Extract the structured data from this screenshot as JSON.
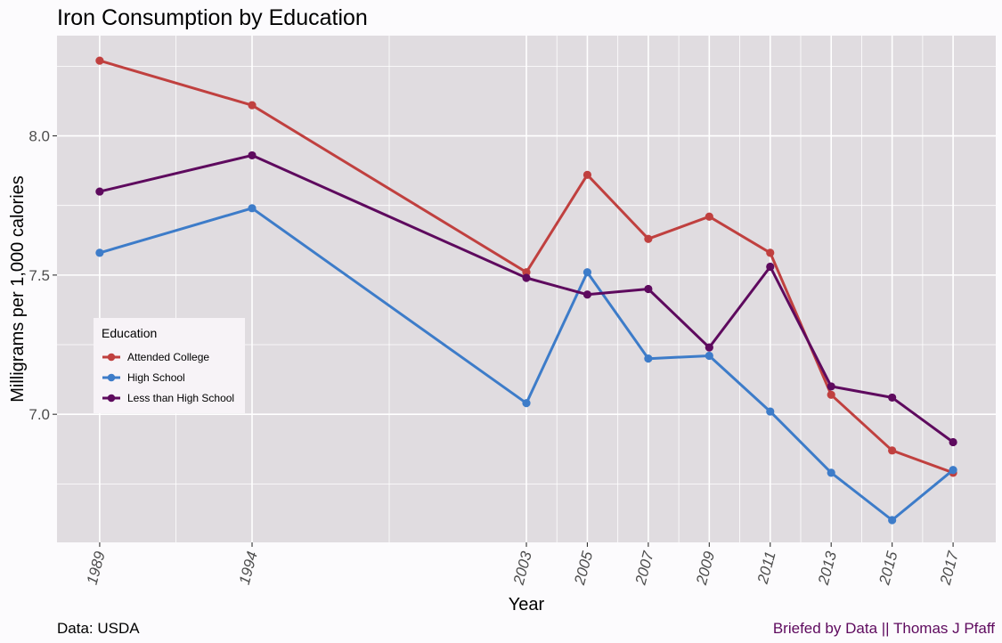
{
  "chart_data": {
    "type": "line",
    "title": "Iron Consumption by Education",
    "xlabel": "Year",
    "ylabel": "Milligrams per 1,000 calories",
    "x": [
      1989,
      1994,
      2003,
      2005,
      2007,
      2009,
      2011,
      2013,
      2015,
      2017
    ],
    "x_tick_labels": [
      "1989",
      "1994",
      "2003",
      "2005",
      "2007",
      "2009",
      "2011",
      "2013",
      "2015",
      "2017"
    ],
    "y_ticks": [
      7.0,
      7.5,
      8.0
    ],
    "y_tick_labels": [
      "7.0",
      "7.5",
      "8.0"
    ],
    "xlim": [
      1987.6,
      2018.4
    ],
    "ylim": [
      6.54,
      8.36
    ],
    "grid": true,
    "legend_title": "Education",
    "legend_position": "left",
    "series": [
      {
        "name": "Attended College",
        "color": "#c0403f",
        "values": [
          8.27,
          8.11,
          7.51,
          7.86,
          7.63,
          7.71,
          7.58,
          7.07,
          6.87,
          6.79
        ]
      },
      {
        "name": "High School",
        "color": "#3d7cc9",
        "values": [
          7.58,
          7.74,
          7.04,
          7.51,
          7.2,
          7.21,
          7.01,
          6.79,
          6.62,
          6.8
        ]
      },
      {
        "name": "Less than High School",
        "color": "#5e0a5e",
        "values": [
          7.8,
          7.93,
          7.49,
          7.43,
          7.45,
          7.24,
          7.53,
          7.1,
          7.06,
          6.9
        ]
      }
    ],
    "colors": {
      "panel_background": "#e0dce0",
      "gridline": "#ffffff",
      "page_background": "#fcfbfd",
      "legend_background": "#f7f3f7",
      "credit": "#5e0a5e"
    }
  },
  "captions": {
    "source": "Data: USDA",
    "credit": "Briefed by Data || Thomas J Pfaff"
  }
}
